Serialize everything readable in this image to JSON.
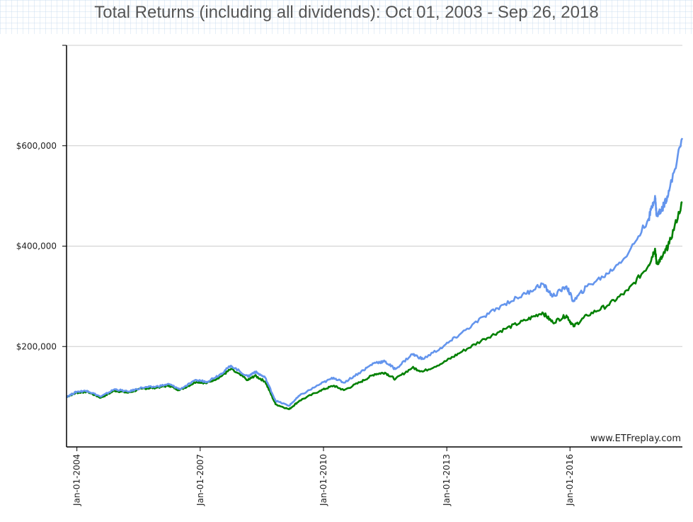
{
  "chart_data": {
    "type": "line",
    "title": "Total Returns (including all dividends): Oct 01, 2003 - Sep 26, 2018",
    "xlabel": "",
    "ylabel": "",
    "x_range": [
      "2003-10-01",
      "2018-09-26"
    ],
    "ylim": [
      0,
      800000
    ],
    "grid": true,
    "y_ticks": [
      {
        "value": 200000,
        "label": "$200,000"
      },
      {
        "value": 400000,
        "label": "$400,000"
      },
      {
        "value": 600000,
        "label": "$600,000"
      }
    ],
    "x_ticks": [
      {
        "value": "2004-01-01",
        "label": "Jan-01-2004"
      },
      {
        "value": "2007-01-01",
        "label": "Jan-01-2007"
      },
      {
        "value": "2010-01-01",
        "label": "Jan-01-2010"
      },
      {
        "value": "2013-01-01",
        "label": "Jan-01-2013"
      },
      {
        "value": "2016-01-01",
        "label": "Jan-01-2016"
      }
    ],
    "series": [
      {
        "color": "#6495ed",
        "points": [
          [
            "2003-10-01",
            100000
          ],
          [
            "2004-01-01",
            110000
          ],
          [
            "2004-04-01",
            112000
          ],
          [
            "2004-08-01",
            100000
          ],
          [
            "2004-12-01",
            115000
          ],
          [
            "2005-04-01",
            110000
          ],
          [
            "2005-08-01",
            118000
          ],
          [
            "2005-12-01",
            120000
          ],
          [
            "2006-04-01",
            125000
          ],
          [
            "2006-07-01",
            115000
          ],
          [
            "2006-12-01",
            133000
          ],
          [
            "2007-03-01",
            130000
          ],
          [
            "2007-07-01",
            145000
          ],
          [
            "2007-10-01",
            162000
          ],
          [
            "2008-03-01",
            140000
          ],
          [
            "2008-05-01",
            150000
          ],
          [
            "2008-08-01",
            138000
          ],
          [
            "2008-11-01",
            92000
          ],
          [
            "2009-03-01",
            82000
          ],
          [
            "2009-06-01",
            102000
          ],
          [
            "2009-12-01",
            125000
          ],
          [
            "2010-04-01",
            138000
          ],
          [
            "2010-07-01",
            128000
          ],
          [
            "2010-12-01",
            150000
          ],
          [
            "2011-04-01",
            168000
          ],
          [
            "2011-07-01",
            170000
          ],
          [
            "2011-10-01",
            155000
          ],
          [
            "2012-03-01",
            185000
          ],
          [
            "2012-06-01",
            175000
          ],
          [
            "2012-12-01",
            200000
          ],
          [
            "2013-05-01",
            225000
          ],
          [
            "2013-12-01",
            260000
          ],
          [
            "2014-06-01",
            285000
          ],
          [
            "2014-12-01",
            305000
          ],
          [
            "2015-05-01",
            325000
          ],
          [
            "2015-08-01",
            300000
          ],
          [
            "2015-12-01",
            320000
          ],
          [
            "2016-02-01",
            290000
          ],
          [
            "2016-06-01",
            320000
          ],
          [
            "2016-12-01",
            345000
          ],
          [
            "2017-06-01",
            385000
          ],
          [
            "2017-12-01",
            455000
          ],
          [
            "2018-01-26",
            500000
          ],
          [
            "2018-02-09",
            460000
          ],
          [
            "2018-04-01",
            475000
          ],
          [
            "2018-06-01",
            510000
          ],
          [
            "2018-09-26",
            615000
          ]
        ]
      },
      {
        "color": "#008000",
        "points": [
          [
            "2003-10-01",
            100000
          ],
          [
            "2004-01-01",
            108000
          ],
          [
            "2004-04-01",
            110000
          ],
          [
            "2004-08-01",
            98000
          ],
          [
            "2004-12-01",
            112000
          ],
          [
            "2005-04-01",
            108000
          ],
          [
            "2005-08-01",
            116000
          ],
          [
            "2005-12-01",
            118000
          ],
          [
            "2006-04-01",
            122000
          ],
          [
            "2006-07-01",
            113000
          ],
          [
            "2006-12-01",
            130000
          ],
          [
            "2007-03-01",
            127000
          ],
          [
            "2007-07-01",
            140000
          ],
          [
            "2007-10-01",
            155000
          ],
          [
            "2008-03-01",
            133000
          ],
          [
            "2008-05-01",
            142000
          ],
          [
            "2008-08-01",
            130000
          ],
          [
            "2008-11-01",
            85000
          ],
          [
            "2009-03-01",
            75000
          ],
          [
            "2009-06-01",
            92000
          ],
          [
            "2009-12-01",
            112000
          ],
          [
            "2010-04-01",
            122000
          ],
          [
            "2010-07-01",
            113000
          ],
          [
            "2010-12-01",
            130000
          ],
          [
            "2011-04-01",
            145000
          ],
          [
            "2011-07-01",
            148000
          ],
          [
            "2011-10-01",
            135000
          ],
          [
            "2012-03-01",
            158000
          ],
          [
            "2012-06-01",
            150000
          ],
          [
            "2012-12-01",
            168000
          ],
          [
            "2013-05-01",
            188000
          ],
          [
            "2013-12-01",
            215000
          ],
          [
            "2014-06-01",
            235000
          ],
          [
            "2014-12-01",
            252000
          ],
          [
            "2015-05-01",
            268000
          ],
          [
            "2015-08-01",
            248000
          ],
          [
            "2015-12-01",
            262000
          ],
          [
            "2016-02-01",
            240000
          ],
          [
            "2016-06-01",
            262000
          ],
          [
            "2016-12-01",
            282000
          ],
          [
            "2017-06-01",
            312000
          ],
          [
            "2017-12-01",
            362000
          ],
          [
            "2018-01-26",
            395000
          ],
          [
            "2018-02-09",
            365000
          ],
          [
            "2018-04-01",
            378000
          ],
          [
            "2018-06-01",
            405000
          ],
          [
            "2018-09-26",
            488000
          ]
        ]
      }
    ]
  },
  "watermark": "www.ETFreplay.com"
}
